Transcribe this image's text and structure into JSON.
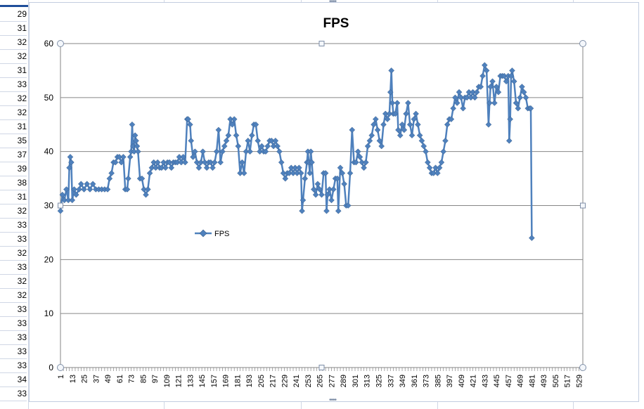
{
  "sheet": {
    "column_values": [
      "29",
      "31",
      "32",
      "32",
      "31",
      "33",
      "32",
      "32",
      "31",
      "35",
      "37",
      "39",
      "38",
      "31",
      "32",
      "33",
      "33",
      "32",
      "33",
      "32",
      "32",
      "33",
      "33",
      "33",
      "33",
      "33",
      "34",
      "33"
    ]
  },
  "colors": {
    "series": "#4f81bd",
    "series_edge": "#385d8a",
    "grid": "#868686",
    "frame": "#c3cde0"
  },
  "chart_data": {
    "type": "line",
    "title": "FPS",
    "xlabel": "",
    "ylabel": "",
    "ylim": [
      0,
      60
    ],
    "yticks": [
      0,
      10,
      20,
      30,
      40,
      50,
      60
    ],
    "xticks": [
      1,
      13,
      25,
      37,
      49,
      61,
      73,
      85,
      97,
      109,
      121,
      133,
      145,
      157,
      169,
      181,
      193,
      205,
      217,
      229,
      241,
      253,
      265,
      277,
      289,
      301,
      313,
      325,
      337,
      349,
      361,
      373,
      385,
      397,
      409,
      421,
      433,
      445,
      457,
      469,
      481,
      493,
      505,
      517,
      529
    ],
    "x_start": 1,
    "x_end": 533,
    "grid": true,
    "legend_position": "left-middle",
    "marker": "diamond",
    "series": [
      {
        "name": "FPS",
        "keypoints": [
          [
            1,
            29
          ],
          [
            3,
            32
          ],
          [
            5,
            31
          ],
          [
            7,
            33
          ],
          [
            9,
            31
          ],
          [
            10,
            37
          ],
          [
            11,
            39
          ],
          [
            12,
            38
          ],
          [
            13,
            31
          ],
          [
            15,
            33
          ],
          [
            17,
            32
          ],
          [
            20,
            33
          ],
          [
            22,
            34
          ],
          [
            25,
            33
          ],
          [
            28,
            34
          ],
          [
            31,
            33
          ],
          [
            34,
            34
          ],
          [
            37,
            33
          ],
          [
            40,
            33
          ],
          [
            43,
            33
          ],
          [
            46,
            33
          ],
          [
            49,
            33
          ],
          [
            51,
            35
          ],
          [
            53,
            36
          ],
          [
            55,
            38
          ],
          [
            57,
            38
          ],
          [
            59,
            39
          ],
          [
            61,
            39
          ],
          [
            63,
            38
          ],
          [
            65,
            39
          ],
          [
            67,
            33
          ],
          [
            69,
            33
          ],
          [
            70,
            35
          ],
          [
            72,
            39
          ],
          [
            73,
            40
          ],
          [
            74,
            45
          ],
          [
            75,
            41
          ],
          [
            76,
            40
          ],
          [
            77,
            43
          ],
          [
            78,
            42
          ],
          [
            79,
            41
          ],
          [
            80,
            40
          ],
          [
            82,
            35
          ],
          [
            84,
            35
          ],
          [
            86,
            33
          ],
          [
            88,
            32
          ],
          [
            90,
            33
          ],
          [
            92,
            36
          ],
          [
            94,
            37
          ],
          [
            96,
            38
          ],
          [
            98,
            37
          ],
          [
            100,
            38
          ],
          [
            102,
            37
          ],
          [
            104,
            37
          ],
          [
            106,
            38
          ],
          [
            108,
            37
          ],
          [
            110,
            38
          ],
          [
            112,
            38
          ],
          [
            114,
            37
          ],
          [
            116,
            38
          ],
          [
            118,
            38
          ],
          [
            120,
            38
          ],
          [
            122,
            39
          ],
          [
            124,
            38
          ],
          [
            126,
            39
          ],
          [
            128,
            38
          ],
          [
            130,
            46
          ],
          [
            131,
            46
          ],
          [
            133,
            45
          ],
          [
            134,
            42
          ],
          [
            136,
            39
          ],
          [
            138,
            40
          ],
          [
            140,
            38
          ],
          [
            142,
            37
          ],
          [
            144,
            38
          ],
          [
            146,
            40
          ],
          [
            148,
            38
          ],
          [
            150,
            37
          ],
          [
            152,
            38
          ],
          [
            154,
            38
          ],
          [
            156,
            37
          ],
          [
            158,
            38
          ],
          [
            160,
            40
          ],
          [
            162,
            44
          ],
          [
            164,
            38
          ],
          [
            166,
            40
          ],
          [
            168,
            41
          ],
          [
            170,
            42
          ],
          [
            172,
            43
          ],
          [
            174,
            46
          ],
          [
            176,
            45
          ],
          [
            178,
            46
          ],
          [
            180,
            43
          ],
          [
            182,
            41
          ],
          [
            184,
            36
          ],
          [
            186,
            38
          ],
          [
            188,
            36
          ],
          [
            190,
            40
          ],
          [
            192,
            42
          ],
          [
            194,
            40
          ],
          [
            196,
            43
          ],
          [
            198,
            45
          ],
          [
            200,
            45
          ],
          [
            202,
            42
          ],
          [
            204,
            40
          ],
          [
            206,
            41
          ],
          [
            208,
            40
          ],
          [
            210,
            40
          ],
          [
            212,
            41
          ],
          [
            214,
            42
          ],
          [
            216,
            42
          ],
          [
            218,
            41
          ],
          [
            220,
            42
          ],
          [
            222,
            41
          ],
          [
            224,
            40
          ],
          [
            226,
            38
          ],
          [
            228,
            36
          ],
          [
            230,
            35
          ],
          [
            232,
            36
          ],
          [
            234,
            36
          ],
          [
            236,
            37
          ],
          [
            238,
            36
          ],
          [
            240,
            37
          ],
          [
            242,
            36
          ],
          [
            244,
            37
          ],
          [
            246,
            36
          ],
          [
            247,
            29
          ],
          [
            248,
            31
          ],
          [
            250,
            35
          ],
          [
            252,
            38
          ],
          [
            253,
            40
          ],
          [
            254,
            38
          ],
          [
            255,
            36
          ],
          [
            256,
            40
          ],
          [
            257,
            38
          ],
          [
            259,
            33
          ],
          [
            261,
            32
          ],
          [
            263,
            34
          ],
          [
            265,
            33
          ],
          [
            267,
            32
          ],
          [
            269,
            36
          ],
          [
            271,
            36
          ],
          [
            272,
            29
          ],
          [
            273,
            32
          ],
          [
            275,
            33
          ],
          [
            277,
            31
          ],
          [
            279,
            33
          ],
          [
            281,
            35
          ],
          [
            283,
            35
          ],
          [
            284,
            29
          ],
          [
            286,
            37
          ],
          [
            288,
            36
          ],
          [
            290,
            34
          ],
          [
            292,
            30
          ],
          [
            294,
            30
          ],
          [
            296,
            36
          ],
          [
            298,
            44
          ],
          [
            300,
            38
          ],
          [
            302,
            38
          ],
          [
            304,
            40
          ],
          [
            306,
            39
          ],
          [
            308,
            38
          ],
          [
            310,
            37
          ],
          [
            312,
            38
          ],
          [
            314,
            41
          ],
          [
            316,
            42
          ],
          [
            318,
            43
          ],
          [
            320,
            45
          ],
          [
            322,
            46
          ],
          [
            324,
            44
          ],
          [
            326,
            42
          ],
          [
            328,
            41
          ],
          [
            330,
            45
          ],
          [
            332,
            47
          ],
          [
            334,
            46
          ],
          [
            336,
            47
          ],
          [
            337,
            51
          ],
          [
            338,
            55
          ],
          [
            339,
            49
          ],
          [
            340,
            47
          ],
          [
            342,
            47
          ],
          [
            344,
            49
          ],
          [
            345,
            44
          ],
          [
            347,
            43
          ],
          [
            349,
            45
          ],
          [
            351,
            44
          ],
          [
            353,
            47
          ],
          [
            355,
            49
          ],
          [
            357,
            45
          ],
          [
            359,
            43
          ],
          [
            361,
            46
          ],
          [
            363,
            47
          ],
          [
            365,
            45
          ],
          [
            367,
            43
          ],
          [
            369,
            42
          ],
          [
            371,
            41
          ],
          [
            373,
            40
          ],
          [
            375,
            38
          ],
          [
            377,
            37
          ],
          [
            379,
            36
          ],
          [
            381,
            36
          ],
          [
            383,
            37
          ],
          [
            385,
            36
          ],
          [
            387,
            37
          ],
          [
            389,
            38
          ],
          [
            391,
            40
          ],
          [
            393,
            42
          ],
          [
            395,
            45
          ],
          [
            397,
            46
          ],
          [
            399,
            46
          ],
          [
            401,
            48
          ],
          [
            403,
            50
          ],
          [
            405,
            49
          ],
          [
            407,
            51
          ],
          [
            409,
            50
          ],
          [
            411,
            48
          ],
          [
            413,
            50
          ],
          [
            415,
            50
          ],
          [
            417,
            51
          ],
          [
            419,
            50
          ],
          [
            421,
            51
          ],
          [
            423,
            50
          ],
          [
            425,
            51
          ],
          [
            427,
            52
          ],
          [
            429,
            52
          ],
          [
            431,
            54
          ],
          [
            433,
            56
          ],
          [
            435,
            55
          ],
          [
            437,
            45
          ],
          [
            438,
            49
          ],
          [
            439,
            52
          ],
          [
            441,
            53
          ],
          [
            443,
            49
          ],
          [
            445,
            52
          ],
          [
            447,
            51
          ],
          [
            449,
            54
          ],
          [
            451,
            54
          ],
          [
            453,
            54
          ],
          [
            455,
            53
          ],
          [
            457,
            54
          ],
          [
            458,
            42
          ],
          [
            459,
            46
          ],
          [
            460,
            54
          ],
          [
            461,
            55
          ],
          [
            463,
            53
          ],
          [
            465,
            49
          ],
          [
            467,
            48
          ],
          [
            469,
            50
          ],
          [
            471,
            52
          ],
          [
            473,
            51
          ],
          [
            475,
            50
          ],
          [
            477,
            48
          ],
          [
            479,
            48
          ],
          [
            480,
            48
          ],
          [
            481,
            24
          ]
        ]
      }
    ]
  }
}
